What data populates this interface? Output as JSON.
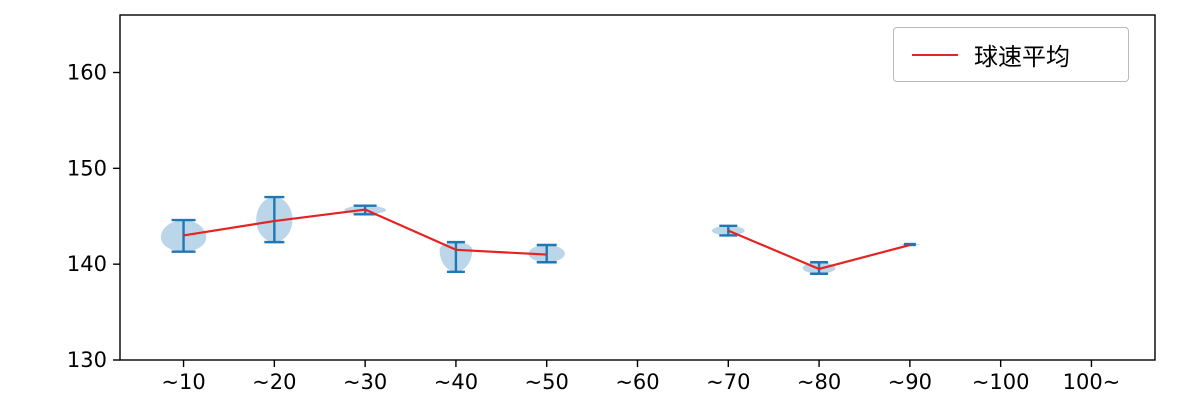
{
  "chart_data": {
    "type": "violin+line",
    "title": "",
    "xlabel": "",
    "ylabel": "",
    "categories": [
      "~10",
      "~20",
      "~30",
      "~40",
      "~50",
      "~60",
      "~70",
      "~80",
      "~90",
      "~100",
      "100~"
    ],
    "ylim": [
      130,
      166
    ],
    "yticks": [
      130,
      140,
      150,
      160
    ],
    "grid": false,
    "legend": {
      "label": "球速平均",
      "position": "upper right"
    },
    "colors": {
      "mean_line": "#e62222",
      "violin_fill": "#bcd6e9",
      "errorbar": "#1f77b4",
      "axis": "#000000"
    },
    "violins": [
      {
        "category": "~10",
        "pos": 1,
        "min": 141.3,
        "max": 144.6,
        "mean": 143.0,
        "halfwidth": 0.25,
        "bulge": 0.45
      },
      {
        "category": "~20",
        "pos": 2,
        "min": 142.3,
        "max": 147.0,
        "mean": 144.5,
        "halfwidth": 0.2,
        "bulge": 0.5
      },
      {
        "category": "~30",
        "pos": 3,
        "min": 145.2,
        "max": 146.1,
        "mean": 145.7,
        "halfwidth": 0.23,
        "bulge": 0.5
      },
      {
        "category": "~40",
        "pos": 4,
        "min": 139.2,
        "max": 142.3,
        "mean": 141.5,
        "halfwidth": 0.18,
        "bulge": 0.75
      },
      {
        "category": "~50",
        "pos": 5,
        "min": 140.2,
        "max": 142.0,
        "mean": 141.0,
        "halfwidth": 0.2,
        "bulge": 0.5
      },
      {
        "category": "~70",
        "pos": 7,
        "min": 143.0,
        "max": 144.0,
        "mean": 143.5,
        "halfwidth": 0.18,
        "bulge": 0.5
      },
      {
        "category": "~80",
        "pos": 8,
        "min": 139.0,
        "max": 140.2,
        "mean": 139.5,
        "halfwidth": 0.18,
        "bulge": 0.5
      },
      {
        "category": "~90",
        "pos": 9,
        "min": 142.0,
        "max": 142.1,
        "mean": 142.0,
        "halfwidth": 0.12,
        "bulge": 0.5
      }
    ],
    "mean_line_segments": [
      {
        "x": [
          1,
          2,
          3,
          4,
          5
        ],
        "y": [
          143.0,
          144.5,
          145.7,
          141.5,
          141.0
        ]
      },
      {
        "x": [
          7,
          8,
          9
        ],
        "y": [
          143.5,
          139.5,
          142.0
        ]
      }
    ]
  }
}
